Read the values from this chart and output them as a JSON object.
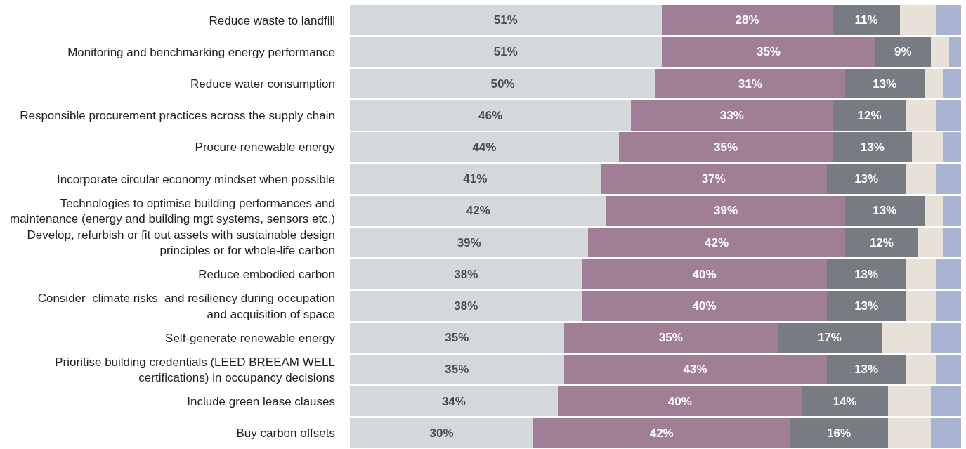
{
  "chart_data": {
    "type": "bar",
    "orientation": "horizontal",
    "stacked": true,
    "categories": [
      "Reduce waste to landfill",
      "Monitoring and benchmarking energy performance",
      "Reduce water consumption",
      "Responsible procurement practices across the supply chain",
      "Procure renewable energy",
      "Incorporate circular economy mindset when possible",
      "Technologies to optimise building performances and\nmaintenance (energy and building mgt systems, sensors etc.)",
      "Develop, refurbish or fit out assets with sustainable design\nprinciples or for whole-life carbon",
      "Reduce embodied carbon",
      "Consider  climate risks  and resiliency during occupation\nand acquisition of space",
      "Self-generate renewable energy",
      "Prioritise building credentials (LEED BREEAM WELL\ncertifications) in occupancy decisions",
      "Include green lease clauses",
      "Buy carbon offsets"
    ],
    "series": [
      {
        "color": "#d5d8db",
        "values": [
          51,
          51,
          50,
          46,
          44,
          41,
          42,
          39,
          38,
          38,
          35,
          35,
          34,
          30
        ],
        "value_labels": [
          "51%",
          "51%",
          "50%",
          "46%",
          "44%",
          "41%",
          "42%",
          "39%",
          "38%",
          "38%",
          "35%",
          "35%",
          "34%",
          "30%"
        ]
      },
      {
        "color": "#a07e95",
        "values": [
          28,
          35,
          31,
          33,
          35,
          37,
          39,
          42,
          40,
          40,
          35,
          43,
          40,
          42
        ],
        "value_labels": [
          "28%",
          "35%",
          "31%",
          "33%",
          "35%",
          "37%",
          "39%",
          "42%",
          "40%",
          "40%",
          "35%",
          "43%",
          "40%",
          "42%"
        ]
      },
      {
        "color": "#797b83",
        "values": [
          11,
          9,
          13,
          12,
          13,
          13,
          13,
          12,
          13,
          13,
          17,
          13,
          14,
          16
        ],
        "value_labels": [
          "11%",
          "9%",
          "13%",
          "12%",
          "13%",
          "13%",
          "13%",
          "12%",
          "13%",
          "13%",
          "17%",
          "13%",
          "14%",
          "16%"
        ]
      },
      {
        "color": "#e8e1d7",
        "values": [
          6,
          3,
          3,
          5,
          5,
          5,
          3,
          4,
          5,
          5,
          8,
          5,
          7,
          7
        ]
      },
      {
        "color": "#a9b3d2",
        "values": [
          4,
          2,
          3,
          4,
          3,
          4,
          3,
          3,
          4,
          4,
          5,
          4,
          5,
          5
        ]
      }
    ],
    "xlim": [
      0,
      100
    ],
    "tick_labels": "y"
  }
}
